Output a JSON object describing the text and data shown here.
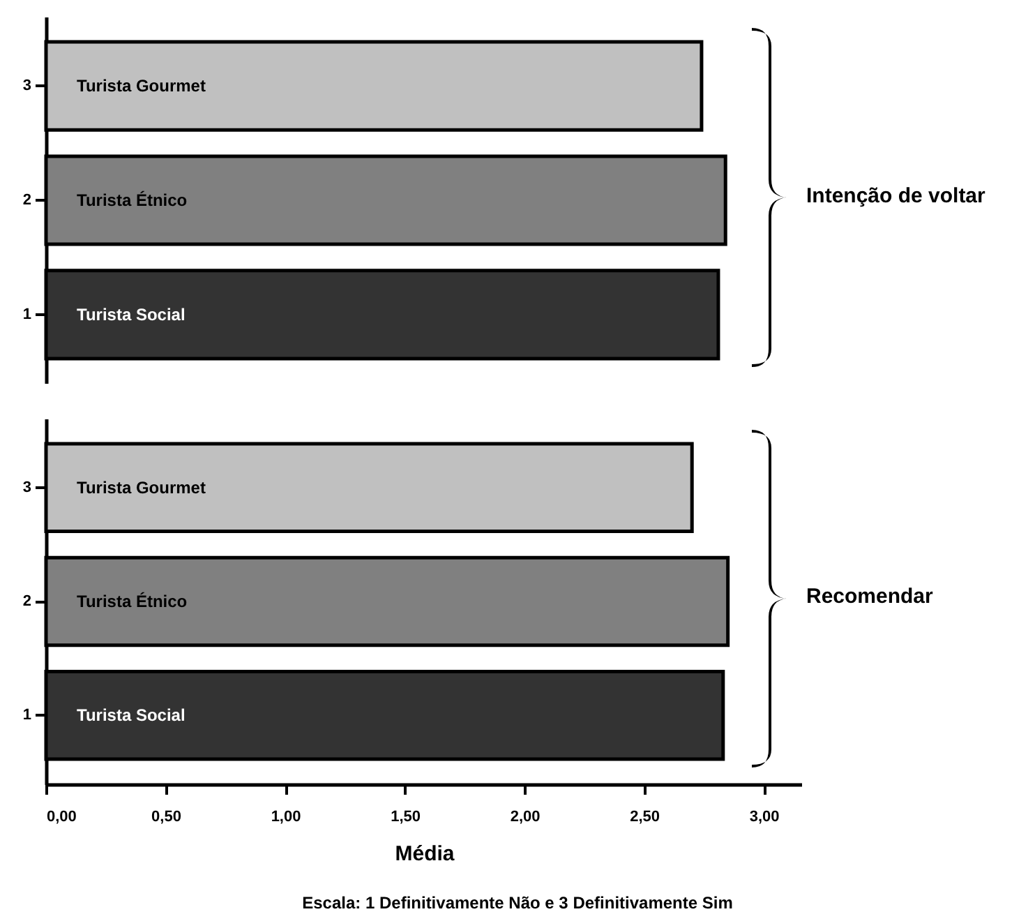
{
  "chart_data": [
    {
      "type": "bar",
      "orientation": "horizontal",
      "categories": [
        "3",
        "2",
        "1"
      ],
      "series": [
        {
          "name": "Turista Gourmet",
          "color": "#c0c0c0",
          "values": [
            2.74,
            null,
            null
          ]
        },
        {
          "name": "Turista Étnico",
          "color": "#808080",
          "values": [
            null,
            2.84,
            null
          ]
        },
        {
          "name": "Turista Social",
          "color": "#333333",
          "values": [
            null,
            null,
            2.81
          ]
        }
      ],
      "xlim": [
        0,
        3.16
      ],
      "tick_labels": "y",
      "annotations": [
        "Intenção de voltar"
      ]
    },
    {
      "type": "bar",
      "orientation": "horizontal",
      "categories": [
        "3",
        "2",
        "1"
      ],
      "series": [
        {
          "name": "Turista Gourmet",
          "color": "#c0c0c0",
          "values": [
            2.7,
            null,
            null
          ]
        },
        {
          "name": "Turista Étnico",
          "color": "#808080",
          "values": [
            null,
            2.85,
            null
          ]
        },
        {
          "name": "Turista Social",
          "color": "#333333",
          "values": [
            null,
            null,
            2.83
          ]
        }
      ],
      "xlim": [
        0,
        3.16
      ],
      "xticks": [
        {
          "value": 0,
          "label": "0,00"
        },
        {
          "value": 0.5,
          "label": "0,50"
        },
        {
          "value": 1,
          "label": "1,00"
        },
        {
          "value": 1.5,
          "label": "1,50"
        },
        {
          "value": 2,
          "label": "2,00"
        },
        {
          "value": 2.5,
          "label": "2,50"
        },
        {
          "value": 3,
          "label": "3,00"
        }
      ],
      "xlabel": "Média",
      "annotations": [
        "Recomendar",
        "Escala: 1 Definitivamente Não e 3 Definitivamente Sim"
      ]
    }
  ]
}
